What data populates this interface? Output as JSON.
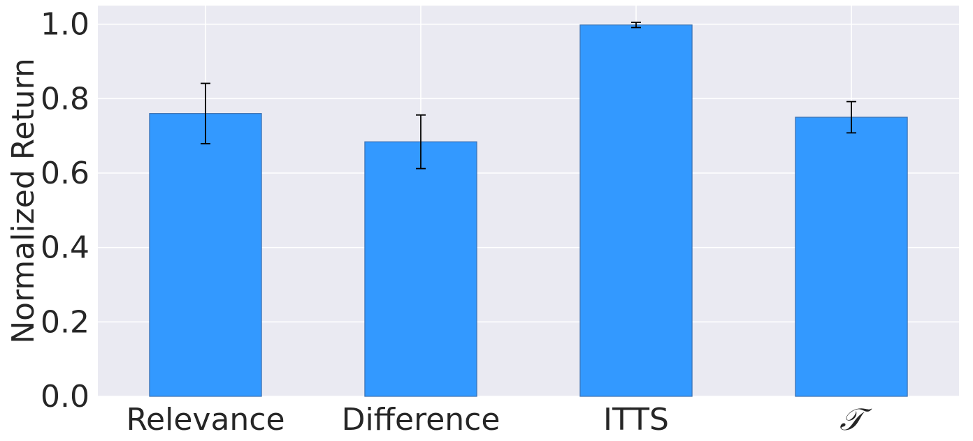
{
  "chart_data": {
    "type": "bar",
    "categories": [
      "Relevance",
      "Difference",
      "ITTS",
      "𝒯"
    ],
    "values": [
      0.76,
      0.684,
      0.998,
      0.75
    ],
    "error": [
      0.081,
      0.072,
      0.007,
      0.042
    ],
    "ylabel": "Normalized Return",
    "xlabel": "",
    "ylim": [
      0,
      1.05
    ],
    "yticks": [
      "0.0",
      "0.2",
      "0.4",
      "0.6",
      "0.8",
      "1.0"
    ],
    "grid": true,
    "colors": {
      "bar": "#3399ff",
      "bar_edge": "#3a6fb0",
      "background": "#eaeaf2",
      "grid": "#ffffff",
      "error_bar": "#000000"
    }
  }
}
